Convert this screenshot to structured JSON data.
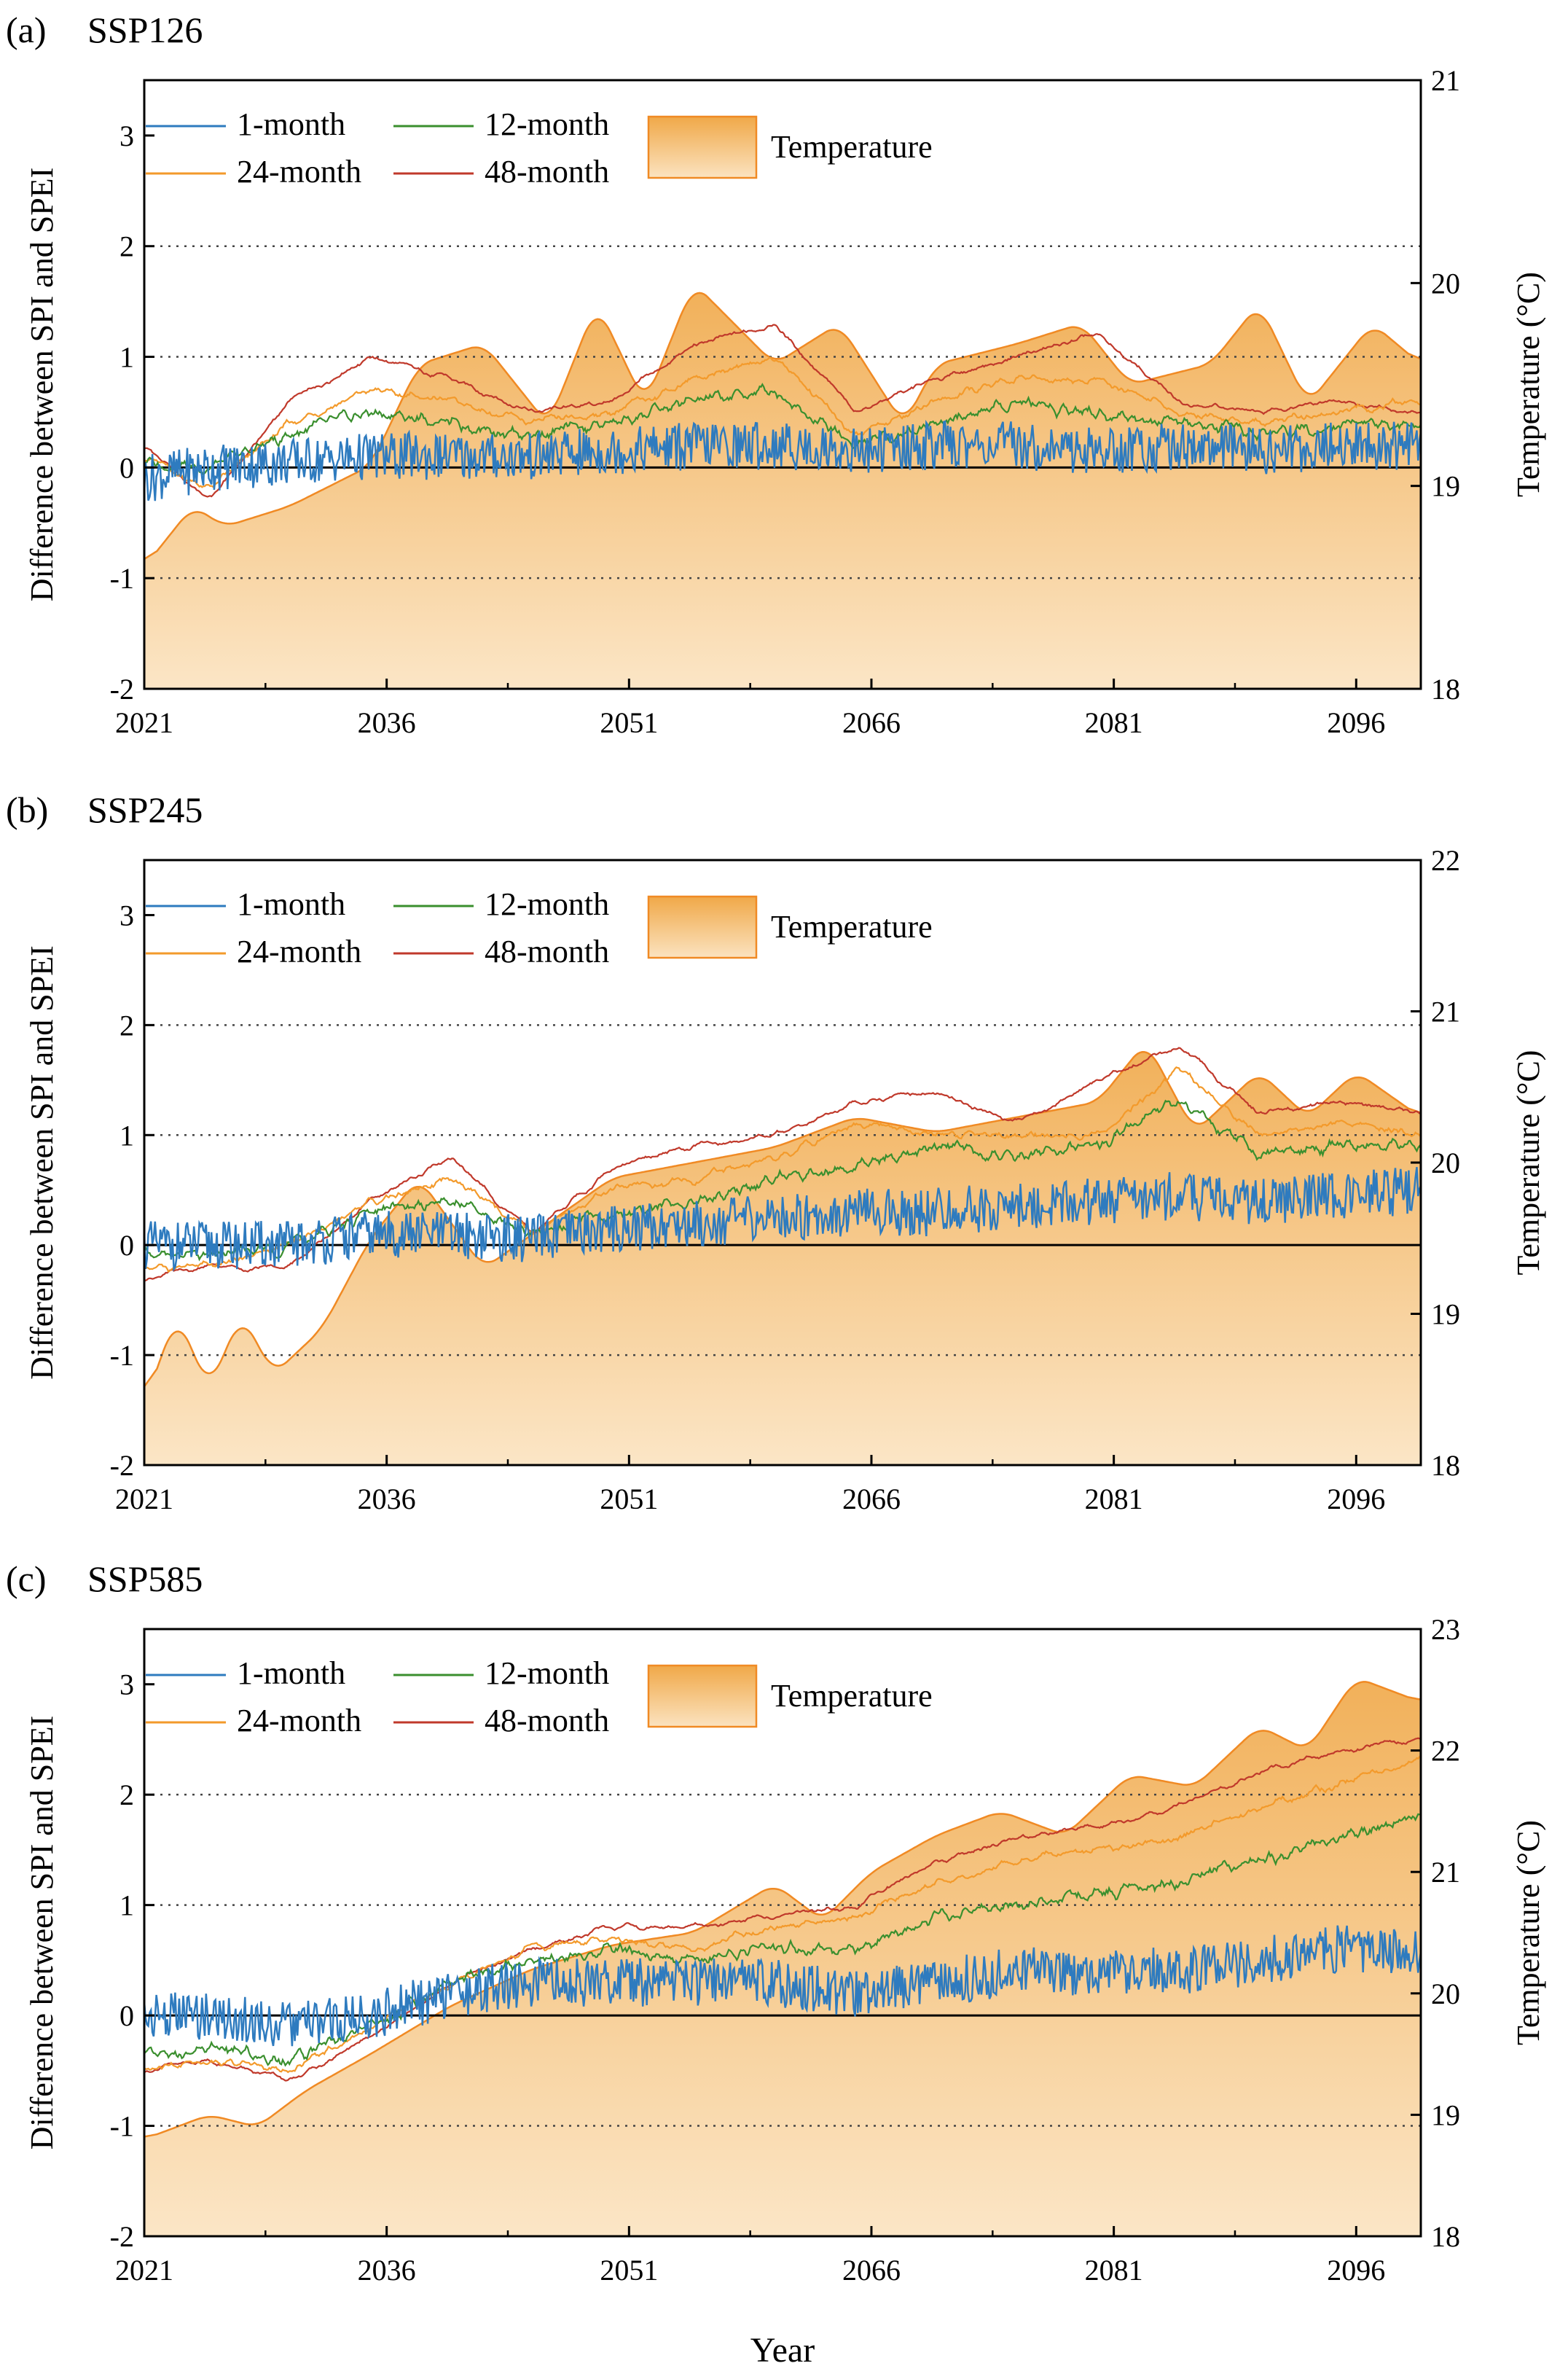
{
  "figure": {
    "xlabel": "Year",
    "colors": {
      "m1": "#2e7bbf",
      "m12": "#3a8f2e",
      "m24": "#f39a2b",
      "m48": "#c0392b",
      "temp_fill": "#f7c98a",
      "temp_line": "#f08a24",
      "grid": "#444444"
    }
  },
  "chart_data": [
    {
      "type": "line",
      "panel_label": "(a)",
      "title": "SSP126",
      "xlabel": "",
      "ylabel": "Difference between SPI and SPEI",
      "y2label": "Temperature (°C)",
      "xlim": [
        2021,
        2100
      ],
      "ylim": [
        -2,
        3.5
      ],
      "y2lim": [
        18,
        21
      ],
      "xticks": [
        "2021",
        "2036",
        "2051",
        "2066",
        "2081",
        "2096"
      ],
      "yticks": [
        "-2",
        "-1",
        "0",
        "1",
        "2",
        "3"
      ],
      "y2ticks": [
        "18",
        "19",
        "20",
        "21"
      ],
      "gridlines_y": [
        -1,
        1,
        2
      ],
      "legend": [
        "1-month",
        "12-month",
        "24-month",
        "48-month",
        "Temperature"
      ],
      "series": [
        {
          "name": "1-month",
          "x": [
            2021,
            2025,
            2030,
            2035,
            2040,
            2045,
            2050,
            2055,
            2060,
            2065,
            2070,
            2075,
            2080,
            2085,
            2090,
            2095,
            2100
          ],
          "values": [
            -0.1,
            0.0,
            0.05,
            0.1,
            0.1,
            0.1,
            0.15,
            0.2,
            0.2,
            0.15,
            0.2,
            0.2,
            0.15,
            0.2,
            0.15,
            0.2,
            0.2
          ]
        },
        {
          "name": "12-month",
          "x": [
            2021,
            2025,
            2030,
            2035,
            2040,
            2045,
            2050,
            2055,
            2060,
            2065,
            2070,
            2075,
            2080,
            2085,
            2090,
            2095,
            2100
          ],
          "values": [
            0.05,
            0.0,
            0.3,
            0.5,
            0.4,
            0.3,
            0.4,
            0.6,
            0.7,
            0.2,
            0.4,
            0.6,
            0.5,
            0.4,
            0.3,
            0.4,
            0.4
          ]
        },
        {
          "name": "24-month",
          "x": [
            2021,
            2025,
            2030,
            2035,
            2040,
            2045,
            2050,
            2055,
            2060,
            2065,
            2070,
            2075,
            2080,
            2085,
            2090,
            2095,
            2100
          ],
          "values": [
            0.1,
            -0.2,
            0.4,
            0.7,
            0.6,
            0.4,
            0.5,
            0.8,
            1.0,
            0.3,
            0.6,
            0.8,
            0.8,
            0.5,
            0.4,
            0.5,
            0.6
          ]
        },
        {
          "name": "48-month",
          "x": [
            2021,
            2025,
            2030,
            2035,
            2040,
            2045,
            2050,
            2055,
            2060,
            2065,
            2070,
            2075,
            2080,
            2085,
            2090,
            2095,
            2100
          ],
          "values": [
            0.2,
            -0.3,
            0.6,
            1.0,
            0.8,
            0.5,
            0.6,
            1.1,
            1.3,
            0.5,
            0.8,
            1.0,
            1.2,
            0.6,
            0.5,
            0.6,
            0.5
          ]
        }
      ],
      "temperature": {
        "name": "Temperature",
        "x": [
          2021,
          2024,
          2026,
          2030,
          2035,
          2038,
          2042,
          2046,
          2049,
          2052,
          2055,
          2060,
          2064,
          2068,
          2070,
          2075,
          2079,
          2082,
          2087,
          2090,
          2093,
          2097,
          2100
        ],
        "values": [
          18.6,
          18.9,
          18.8,
          18.9,
          19.1,
          19.6,
          19.7,
          19.3,
          19.9,
          19.4,
          20.0,
          19.6,
          19.8,
          19.3,
          19.6,
          19.7,
          19.8,
          19.5,
          19.6,
          19.9,
          19.4,
          19.8,
          19.6
        ]
      }
    },
    {
      "type": "line",
      "panel_label": "(b)",
      "title": "SSP245",
      "xlabel": "",
      "ylabel": "Difference between SPI and SPEI",
      "y2label": "Temperature (°C)",
      "xlim": [
        2021,
        2100
      ],
      "ylim": [
        -2,
        3.5
      ],
      "y2lim": [
        18,
        22
      ],
      "xticks": [
        "2021",
        "2036",
        "2051",
        "2066",
        "2081",
        "2096"
      ],
      "yticks": [
        "-2",
        "-1",
        "0",
        "1",
        "2",
        "3"
      ],
      "y2ticks": [
        "18",
        "19",
        "20",
        "21",
        "22"
      ],
      "gridlines_y": [
        -1,
        1,
        2
      ],
      "legend": [
        "1-month",
        "12-month",
        "24-month",
        "48-month",
        "Temperature"
      ],
      "series": [
        {
          "name": "1-month",
          "x": [
            2021,
            2025,
            2030,
            2035,
            2040,
            2045,
            2050,
            2055,
            2060,
            2065,
            2070,
            2075,
            2080,
            2085,
            2090,
            2095,
            2100
          ],
          "values": [
            0.0,
            0.0,
            0.0,
            0.1,
            0.1,
            0.05,
            0.15,
            0.2,
            0.25,
            0.3,
            0.3,
            0.35,
            0.4,
            0.45,
            0.4,
            0.45,
            0.5
          ]
        },
        {
          "name": "12-month",
          "x": [
            2021,
            2025,
            2030,
            2035,
            2040,
            2045,
            2050,
            2055,
            2060,
            2065,
            2070,
            2075,
            2080,
            2085,
            2090,
            2095,
            2100
          ],
          "values": [
            -0.1,
            -0.1,
            0.0,
            0.3,
            0.4,
            0.1,
            0.3,
            0.4,
            0.6,
            0.7,
            0.9,
            0.8,
            0.9,
            1.3,
            0.8,
            0.9,
            0.9
          ]
        },
        {
          "name": "24-month",
          "x": [
            2021,
            2025,
            2030,
            2035,
            2040,
            2045,
            2050,
            2055,
            2060,
            2065,
            2070,
            2075,
            2080,
            2085,
            2090,
            2095,
            2100
          ],
          "values": [
            -0.2,
            -0.2,
            0.0,
            0.4,
            0.6,
            0.1,
            0.5,
            0.6,
            0.8,
            1.1,
            1.0,
            1.0,
            1.0,
            1.6,
            1.0,
            1.1,
            1.0
          ]
        },
        {
          "name": "48-month",
          "x": [
            2021,
            2025,
            2030,
            2035,
            2040,
            2045,
            2050,
            2055,
            2060,
            2065,
            2070,
            2075,
            2080,
            2085,
            2090,
            2095,
            2100
          ],
          "values": [
            -0.3,
            -0.2,
            -0.2,
            0.4,
            0.8,
            0.1,
            0.7,
            0.9,
            1.0,
            1.3,
            1.4,
            1.1,
            1.5,
            1.8,
            1.2,
            1.3,
            1.2
          ]
        }
      ],
      "temperature": {
        "name": "Temperature",
        "x": [
          2021,
          2023,
          2025,
          2027,
          2029,
          2032,
          2035,
          2038,
          2042,
          2046,
          2050,
          2055,
          2060,
          2065,
          2070,
          2075,
          2080,
          2083,
          2086,
          2090,
          2093,
          2096,
          2100
        ],
        "values": [
          18.4,
          19.0,
          18.5,
          19.0,
          18.6,
          18.9,
          19.5,
          19.9,
          19.3,
          19.6,
          19.9,
          20.0,
          20.1,
          20.3,
          20.2,
          20.3,
          20.4,
          20.8,
          20.2,
          20.6,
          20.3,
          20.6,
          20.3
        ]
      }
    },
    {
      "type": "line",
      "panel_label": "(c)",
      "title": "SSP585",
      "xlabel": "Year",
      "ylabel": "Difference between SPI and SPEI",
      "y2label": "Temperature (°C)",
      "xlim": [
        2021,
        2100
      ],
      "ylim": [
        -2,
        3.5
      ],
      "y2lim": [
        18,
        23
      ],
      "xticks": [
        "2021",
        "2036",
        "2051",
        "2066",
        "2081",
        "2096"
      ],
      "yticks": [
        "-2",
        "-1",
        "0",
        "1",
        "2",
        "3"
      ],
      "y2ticks": [
        "18",
        "19",
        "20",
        "21",
        "22",
        "23"
      ],
      "gridlines_y": [
        -1,
        1,
        2
      ],
      "legend": [
        "1-month",
        "12-month",
        "24-month",
        "48-month",
        "Temperature"
      ],
      "series": [
        {
          "name": "1-month",
          "x": [
            2021,
            2025,
            2030,
            2035,
            2040,
            2045,
            2050,
            2055,
            2060,
            2065,
            2070,
            2075,
            2080,
            2085,
            2090,
            2095,
            2100
          ],
          "values": [
            0.0,
            0.0,
            -0.1,
            0.0,
            0.2,
            0.3,
            0.3,
            0.3,
            0.3,
            0.2,
            0.3,
            0.4,
            0.4,
            0.4,
            0.5,
            0.6,
            0.6
          ]
        },
        {
          "name": "12-month",
          "x": [
            2021,
            2025,
            2030,
            2035,
            2040,
            2045,
            2050,
            2055,
            2060,
            2065,
            2070,
            2075,
            2080,
            2085,
            2090,
            2095,
            2100
          ],
          "values": [
            -0.4,
            -0.3,
            -0.4,
            -0.1,
            0.3,
            0.5,
            0.6,
            0.5,
            0.6,
            0.6,
            0.9,
            1.0,
            1.1,
            1.2,
            1.4,
            1.6,
            1.8
          ]
        },
        {
          "name": "24-month",
          "x": [
            2021,
            2025,
            2030,
            2035,
            2040,
            2045,
            2050,
            2055,
            2060,
            2065,
            2070,
            2075,
            2080,
            2085,
            2090,
            2095,
            2100
          ],
          "values": [
            -0.5,
            -0.4,
            -0.5,
            -0.1,
            0.3,
            0.6,
            0.7,
            0.6,
            0.8,
            0.9,
            1.2,
            1.4,
            1.5,
            1.6,
            1.9,
            2.1,
            2.3
          ]
        },
        {
          "name": "48-month",
          "x": [
            2021,
            2025,
            2030,
            2035,
            2040,
            2045,
            2050,
            2055,
            2060,
            2065,
            2070,
            2075,
            2080,
            2085,
            2090,
            2095,
            2100
          ],
          "values": [
            -0.5,
            -0.4,
            -0.6,
            -0.2,
            0.3,
            0.6,
            0.8,
            0.8,
            0.9,
            1.0,
            1.4,
            1.6,
            1.7,
            1.9,
            2.2,
            2.4,
            2.5
          ]
        }
      ],
      "temperature": {
        "name": "Temperature",
        "x": [
          2021,
          2025,
          2028,
          2031,
          2035,
          2040,
          2045,
          2050,
          2055,
          2060,
          2063,
          2066,
          2070,
          2074,
          2078,
          2082,
          2086,
          2090,
          2093,
          2096,
          2098,
          2100
        ],
        "values": [
          18.8,
          19.0,
          18.9,
          19.2,
          19.5,
          19.9,
          20.2,
          20.4,
          20.5,
          20.9,
          20.6,
          21.0,
          21.3,
          21.5,
          21.3,
          21.8,
          21.7,
          22.2,
          22.0,
          22.6,
          22.5,
          22.4
        ]
      }
    }
  ]
}
